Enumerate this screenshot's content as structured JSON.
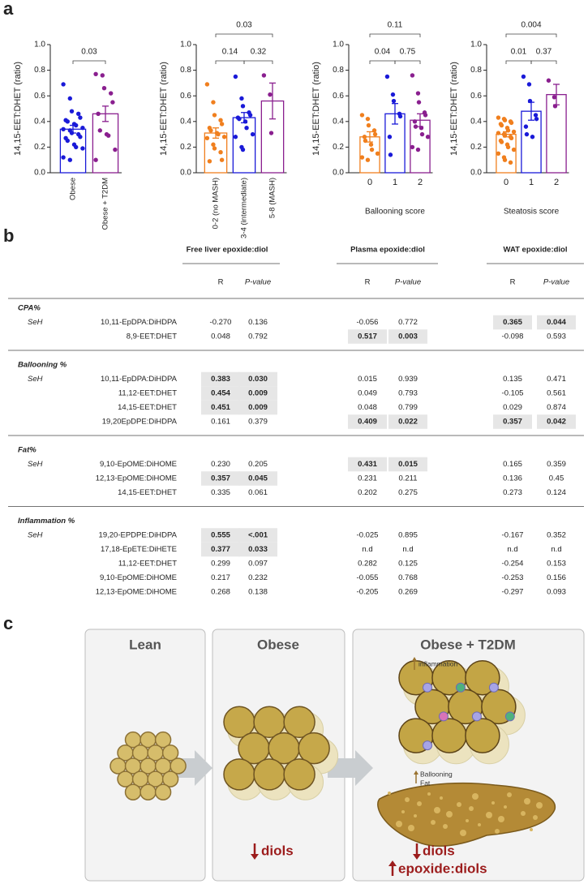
{
  "panel_labels": [
    "a",
    "b",
    "c"
  ],
  "chart_data": [
    {
      "type": "bar",
      "y_label": "14,15-EET:DHET (ratio)",
      "rotate_labels": true,
      "categories": [
        "Obese",
        "Obese + T2DM"
      ],
      "colors": [
        "#1a1ad8",
        "#8a1f8f"
      ],
      "values": [
        0.34,
        0.46
      ],
      "errors": [
        0.03,
        0.06
      ],
      "points": [
        [
          0.69,
          0.58,
          0.48,
          0.46,
          0.43,
          0.41,
          0.4,
          0.38,
          0.37,
          0.35,
          0.34,
          0.33,
          0.31,
          0.3,
          0.28,
          0.27,
          0.25,
          0.22,
          0.2,
          0.19,
          0.12,
          0.1
        ],
        [
          0.77,
          0.76,
          0.66,
          0.62,
          0.55,
          0.46,
          0.33,
          0.3,
          0.29,
          0.18,
          0.1
        ]
      ],
      "ylim": [
        0,
        1.0
      ],
      "yticks": [
        {
          "value": 0,
          "label": "0.0"
        },
        0.2,
        0.4,
        0.6,
        0.8,
        {
          "value": 1.0,
          "label": "1.0"
        }
      ],
      "comparisons": [
        {
          "groups": [
            "Obese",
            "Obese + T2DM"
          ],
          "p": 0.03
        }
      ]
    },
    {
      "type": "bar",
      "y_label": "14,15-EET:DHET (ratio)",
      "rotate_labels": true,
      "categories": [
        "0-2 (no MASH)",
        "3-4 (intermediate)",
        "5-8 (MASH)"
      ],
      "colors": [
        "#f07f1e",
        "#1a1ad8",
        "#8a1f8f"
      ],
      "values": [
        0.31,
        0.43,
        0.56
      ],
      "errors": [
        0.04,
        0.04,
        0.14
      ],
      "points": [
        [
          0.69,
          0.55,
          0.45,
          0.41,
          0.38,
          0.35,
          0.33,
          0.31,
          0.3,
          0.28,
          0.27,
          0.22,
          0.19,
          0.16,
          0.1,
          0.09
        ],
        [
          0.75,
          0.58,
          0.52,
          0.47,
          0.45,
          0.43,
          0.42,
          0.4,
          0.35,
          0.3,
          0.28,
          0.2,
          0.18
        ],
        [
          0.76,
          0.61,
          0.31
        ]
      ],
      "ylim": [
        0,
        1.0
      ],
      "yticks": [
        {
          "value": 0,
          "label": "0.0"
        },
        0.2,
        0.4,
        0.6,
        0.8,
        {
          "value": 1.0,
          "label": "1.0"
        }
      ],
      "comparisons": [
        {
          "groups": [
            "0-2 (no MASH)",
            "3-4 (intermediate)"
          ],
          "p": 0.14
        },
        {
          "groups": [
            "3-4 (intermediate)",
            "5-8 (MASH)"
          ],
          "p": 0.32
        },
        {
          "groups": [
            "0-2 (no MASH)",
            "5-8 (MASH)"
          ],
          "p": 0.03
        }
      ]
    },
    {
      "type": "bar",
      "y_label": "14,15-EET:DHET (ratio)",
      "x_label": "Ballooning score",
      "rotate_labels": false,
      "categories": [
        "0",
        "1",
        "2"
      ],
      "colors": [
        "#f07f1e",
        "#1a1ad8",
        "#8a1f8f"
      ],
      "values": [
        0.28,
        0.46,
        0.41
      ],
      "errors": [
        0.04,
        0.08,
        0.05
      ],
      "points": [
        [
          0.45,
          0.42,
          0.37,
          0.33,
          0.3,
          0.28,
          0.25,
          0.22,
          0.18,
          0.15,
          0.12,
          0.1
        ],
        [
          0.75,
          0.61,
          0.56,
          0.46,
          0.44,
          0.28,
          0.14
        ],
        [
          0.76,
          0.62,
          0.55,
          0.47,
          0.45,
          0.4,
          0.36,
          0.35,
          0.3,
          0.28,
          0.2,
          0.18
        ]
      ],
      "ylim": [
        0,
        1.0
      ],
      "yticks": [
        {
          "value": 0,
          "label": "0.0"
        },
        0.2,
        0.4,
        0.6,
        0.8,
        {
          "value": 1.0,
          "label": "1.0"
        }
      ],
      "comparisons": [
        {
          "groups": [
            "0",
            "1"
          ],
          "p": 0.04
        },
        {
          "groups": [
            "1",
            "2"
          ],
          "p": 0.75
        },
        {
          "groups": [
            "0",
            "2"
          ],
          "p": 0.11
        }
      ]
    },
    {
      "type": "bar",
      "y_label": "14,15-EET:DHET (ratio)",
      "x_label": "Steatosis score",
      "rotate_labels": false,
      "categories": [
        "0",
        "1",
        "2"
      ],
      "colors": [
        "#f07f1e",
        "#1a1ad8",
        "#8a1f8f"
      ],
      "values": [
        0.3,
        0.48,
        0.61
      ],
      "errors": [
        0.02,
        0.07,
        0.08
      ],
      "points": [
        [
          0.43,
          0.42,
          0.41,
          0.4,
          0.39,
          0.38,
          0.37,
          0.35,
          0.33,
          0.32,
          0.31,
          0.3,
          0.29,
          0.28,
          0.27,
          0.25,
          0.24,
          0.22,
          0.2,
          0.18,
          0.15,
          0.12,
          0.1,
          0.08
        ],
        [
          0.75,
          0.69,
          0.56,
          0.45,
          0.42,
          0.36,
          0.3,
          0.28
        ],
        [
          0.72,
          0.59,
          0.52
        ]
      ],
      "ylim": [
        0,
        1.0
      ],
      "yticks": [
        {
          "value": 0,
          "label": "0.0"
        },
        0.2,
        0.4,
        0.6,
        0.8,
        {
          "value": 1.0,
          "label": "1.0"
        }
      ],
      "comparisons": [
        {
          "groups": [
            "0",
            "1"
          ],
          "p": 0.01
        },
        {
          "groups": [
            "1",
            "2"
          ],
          "p": 0.37
        },
        {
          "groups": [
            "0",
            "2"
          ],
          "p": 0.004
        }
      ]
    }
  ],
  "table": {
    "groups": [
      {
        "title": "Free liver epoxide:diol",
        "columns": [
          "R",
          "P-value"
        ]
      },
      {
        "title": "Plasma epoxide:diol",
        "columns": [
          "R",
          "P-value"
        ]
      },
      {
        "title": "WAT epoxide:diol",
        "columns": [
          "R",
          "P-value"
        ]
      }
    ],
    "sections": [
      {
        "title": "CPA%",
        "enzyme": "SeH",
        "rows": [
          {
            "metabolite": "10,11-EpDPA:DiHDPA",
            "cells": [
              {
                "text": "-0.270"
              },
              {
                "text": "0.136"
              },
              {
                "text": "-0.056"
              },
              {
                "text": "0.772"
              },
              {
                "text": "0.365",
                "bold": true
              },
              {
                "text": "0.044",
                "bold": true
              }
            ]
          },
          {
            "metabolite": "8,9-EET:DHET",
            "cells": [
              {
                "text": "0.048"
              },
              {
                "text": "0.792"
              },
              {
                "text": "0.517",
                "bold": true
              },
              {
                "text": "0.003",
                "bold": true
              },
              {
                "text": "-0.098"
              },
              {
                "text": "0.593"
              }
            ]
          }
        ]
      },
      {
        "title": "Ballooning %",
        "enzyme": "SeH",
        "rows": [
          {
            "metabolite": "10,11-EpDPA:DiHDPA",
            "cells": [
              {
                "text": "0.383",
                "bold": true
              },
              {
                "text": "0.030",
                "bold": true
              },
              {
                "text": "0.015"
              },
              {
                "text": "0.939"
              },
              {
                "text": "0.135"
              },
              {
                "text": "0.471"
              }
            ]
          },
          {
            "metabolite": "11,12-EET:DHET",
            "cells": [
              {
                "text": "0.454",
                "bold": true
              },
              {
                "text": "0.009",
                "bold": true
              },
              {
                "text": "0.049"
              },
              {
                "text": "0.793"
              },
              {
                "text": "-0.105"
              },
              {
                "text": "0.561"
              }
            ]
          },
          {
            "metabolite": "14,15-EET:DHET",
            "cells": [
              {
                "text": "0.451",
                "bold": true
              },
              {
                "text": "0.009",
                "bold": true
              },
              {
                "text": "0.048"
              },
              {
                "text": "0.799"
              },
              {
                "text": "0.029"
              },
              {
                "text": "0.874"
              }
            ]
          },
          {
            "metabolite": "19,20EpDPE:DiHDPA",
            "cells": [
              {
                "text": "0.161"
              },
              {
                "text": "0.379"
              },
              {
                "text": "0.409",
                "bold": true
              },
              {
                "text": "0.022",
                "bold": true
              },
              {
                "text": "0.357",
                "bold": true
              },
              {
                "text": "0.042",
                "bold": true
              }
            ]
          }
        ]
      },
      {
        "title": "Fat%",
        "enzyme": "SeH",
        "rows": [
          {
            "metabolite": "9,10-EpOME:DiHOME",
            "cells": [
              {
                "text": "0.230"
              },
              {
                "text": "0.205"
              },
              {
                "text": "0.431",
                "bold": true
              },
              {
                "text": "0.015",
                "bold": true
              },
              {
                "text": "0.165"
              },
              {
                "text": "0.359"
              }
            ]
          },
          {
            "metabolite": "12,13-EpOME:DiHOME",
            "cells": [
              {
                "text": "0.357",
                "bold": true
              },
              {
                "text": "0.045",
                "bold": true
              },
              {
                "text": "0.231"
              },
              {
                "text": "0.211"
              },
              {
                "text": "0.136"
              },
              {
                "text": "0.45"
              }
            ]
          },
          {
            "metabolite": "14,15-EET:DHET",
            "cells": [
              {
                "text": "0.335"
              },
              {
                "text": "0.061"
              },
              {
                "text": "0.202"
              },
              {
                "text": "0.275"
              },
              {
                "text": "0.273"
              },
              {
                "text": "0.124"
              }
            ]
          }
        ]
      },
      {
        "title": "Inflammation %",
        "enzyme": "SeH",
        "rows": [
          {
            "metabolite": "19,20-EPDPE:DiHDPA",
            "cells": [
              {
                "text": "0.555",
                "bold": true
              },
              {
                "text": "<.001",
                "bold": true
              },
              {
                "text": "-0.025"
              },
              {
                "text": "0.895"
              },
              {
                "text": "-0.167"
              },
              {
                "text": "0.352"
              }
            ]
          },
          {
            "metabolite": "17,18-EpETE:DiHETE",
            "cells": [
              {
                "text": "0.377",
                "bold": true
              },
              {
                "text": "0.033",
                "bold": true
              },
              {
                "text": "n.d"
              },
              {
                "text": "n.d"
              },
              {
                "text": "n.d"
              },
              {
                "text": "n.d"
              }
            ]
          },
          {
            "metabolite": "11,12-EET:DHET",
            "cells": [
              {
                "text": "0.299"
              },
              {
                "text": "0.097"
              },
              {
                "text": "0.282"
              },
              {
                "text": "0.125"
              },
              {
                "text": "-0.254"
              },
              {
                "text": "0.153"
              }
            ]
          },
          {
            "metabolite": "9,10-EpOME:DiHOME",
            "cells": [
              {
                "text": "0.217"
              },
              {
                "text": "0.232"
              },
              {
                "text": "-0.055"
              },
              {
                "text": "0.768"
              },
              {
                "text": "-0.253"
              },
              {
                "text": "0.156"
              }
            ]
          },
          {
            "metabolite": "12,13-EpOME:DiHOME",
            "cells": [
              {
                "text": "0.268"
              },
              {
                "text": "0.138"
              },
              {
                "text": "-0.205"
              },
              {
                "text": "0.269"
              },
              {
                "text": "-0.297"
              },
              {
                "text": "0.093"
              }
            ]
          }
        ]
      }
    ]
  },
  "diagram": {
    "boxes": [
      {
        "title": "Lean"
      },
      {
        "title": "Obese",
        "notes": [
          "diols"
        ]
      },
      {
        "title": "Obese + T2DM",
        "notes": [
          "diols",
          "epoxide:diols"
        ],
        "callouts": [
          "inflammation",
          "Ballooning",
          "Fat"
        ]
      }
    ]
  }
}
